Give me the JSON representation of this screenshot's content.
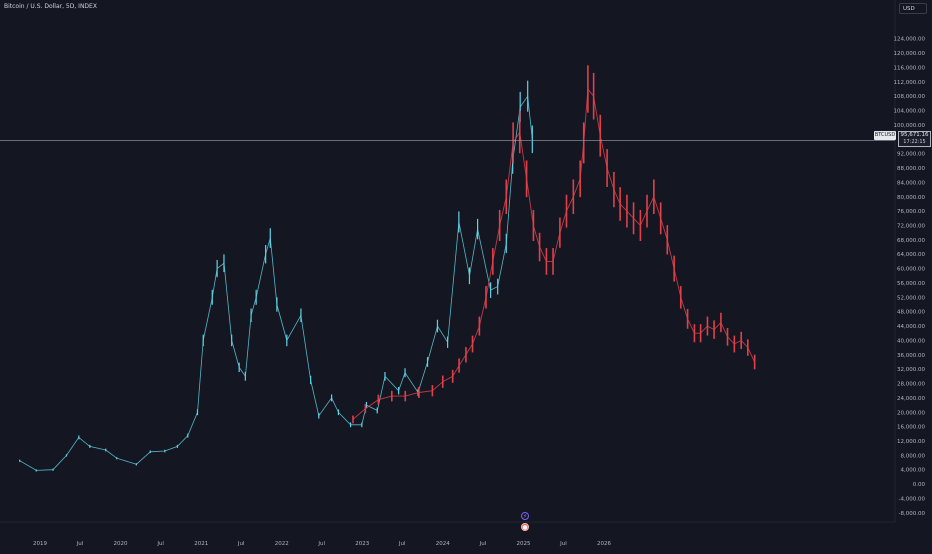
{
  "header": {
    "symbol_title": "Bitcoin / U.S. Dollar, 5D, INDEX",
    "currency": "USD"
  },
  "last_price": {
    "symbol": "BTCUSD",
    "price": "95,671.16",
    "countdown": "17:22:15",
    "value": 95671.16
  },
  "colors": {
    "background": "#141722",
    "history_bars": "#5fd3e6",
    "projection_bars": "#e0404a",
    "price_line": "#9aa0ab",
    "axis_text": "#b2b5be"
  },
  "chart_data": {
    "type": "bar",
    "title": "Bitcoin / U.S. Dollar, 5D, INDEX",
    "xlabel": "",
    "ylabel": "",
    "ylim": [
      -10000,
      132000
    ],
    "grid": false,
    "y_ticks": [
      "124,000.00",
      "120,000.00",
      "116,000.00",
      "112,000.00",
      "108,000.00",
      "104,000.00",
      "100,000.00",
      "92,000.00",
      "88,000.00",
      "84,000.00",
      "80,000.00",
      "76,000.00",
      "72,000.00",
      "68,000.00",
      "64,000.00",
      "60,000.00",
      "56,000.00",
      "52,000.00",
      "48,000.00",
      "44,000.00",
      "40,000.00",
      "36,000.00",
      "32,000.00",
      "28,000.00",
      "24,000.00",
      "20,000.00",
      "16,000.00",
      "12,000.00",
      "8,000.00",
      "4,000.00",
      "0.00",
      "-4,000.00",
      "-8,000.00"
    ],
    "x_ticks": [
      "2019",
      "Jul",
      "2020",
      "Jul",
      "2021",
      "Jul",
      "2022",
      "Jul",
      "2023",
      "Jul",
      "2024",
      "Jul",
      "2025",
      "Jul",
      "2026"
    ],
    "x_tick_dates": [
      "2019-01-01",
      "2019-07-01",
      "2020-01-01",
      "2020-07-01",
      "2021-01-01",
      "2021-07-01",
      "2022-01-01",
      "2022-07-01",
      "2023-01-01",
      "2023-07-01",
      "2024-01-01",
      "2024-07-01",
      "2025-01-01",
      "2025-07-01",
      "2026-01-01"
    ],
    "series": [
      {
        "color": "#5fd3e6",
        "x": [
          "2018-10-01",
          "2018-12-15",
          "2019-03-01",
          "2019-05-01",
          "2019-06-26",
          "2019-08-15",
          "2019-10-26",
          "2019-12-15",
          "2020-03-13",
          "2020-05-15",
          "2020-07-20",
          "2020-09-15",
          "2020-11-01",
          "2020-12-15",
          "2021-01-10",
          "2021-02-20",
          "2021-03-14",
          "2021-04-14",
          "2021-05-19",
          "2021-06-22",
          "2021-07-20",
          "2021-08-15",
          "2021-09-07",
          "2021-10-20",
          "2021-11-10",
          "2021-12-10",
          "2022-01-24",
          "2022-03-29",
          "2022-05-12",
          "2022-06-18",
          "2022-08-15",
          "2022-09-15",
          "2022-11-09",
          "2022-12-30",
          "2023-01-20",
          "2023-03-10",
          "2023-04-14",
          "2023-06-15",
          "2023-07-14",
          "2023-09-11",
          "2023-10-24",
          "2023-12-08",
          "2024-01-23",
          "2024-03-14",
          "2024-05-01",
          "2024-06-07",
          "2024-08-05",
          "2024-09-06",
          "2024-10-15",
          "2024-11-13",
          "2024-12-17",
          "2025-01-20",
          "2025-02-10"
        ],
        "y": [
          6500,
          3800,
          4000,
          8000,
          13000,
          10500,
          9500,
          7200,
          5500,
          9000,
          9200,
          10500,
          13500,
          20000,
          40000,
          52000,
          60000,
          61500,
          40000,
          32500,
          30000,
          47000,
          52000,
          64000,
          68500,
          50000,
          40000,
          47000,
          29000,
          19000,
          24000,
          20000,
          16500,
          16500,
          22000,
          20500,
          30000,
          26000,
          31000,
          25500,
          34000,
          44000,
          39500,
          73000,
          58000,
          71000,
          54000,
          55000,
          67000,
          90000,
          105000,
          108000,
          96000
        ]
      },
      {
        "color": "#e0404a",
        "x": [
          "2022-11-20",
          "2023-01-15",
          "2023-03-15",
          "2023-05-15",
          "2023-07-15",
          "2023-09-15",
          "2023-11-15",
          "2024-01-01",
          "2024-02-15",
          "2024-03-15",
          "2024-04-15",
          "2024-05-15",
          "2024-06-15",
          "2024-07-15",
          "2024-08-15",
          "2024-09-15",
          "2024-10-15",
          "2024-11-15",
          "2024-12-15",
          "2025-01-15",
          "2025-02-15",
          "2025-03-15",
          "2025-04-15",
          "2025-05-15",
          "2025-06-15",
          "2025-07-15",
          "2025-08-15",
          "2025-09-15",
          "2025-10-01",
          "2025-10-20",
          "2025-11-15",
          "2025-12-15",
          "2026-01-15",
          "2026-02-15",
          "2026-03-15",
          "2026-04-15",
          "2026-05-15",
          "2026-06-15",
          "2026-07-15",
          "2026-08-15",
          "2026-09-15",
          "2026-10-15",
          "2026-11-15",
          "2026-12-15",
          "2027-01-15",
          "2027-02-15",
          "2027-03-15",
          "2027-04-15",
          "2027-05-15",
          "2027-06-15",
          "2027-07-15",
          "2027-08-15",
          "2027-09-15",
          "2027-10-15",
          "2027-11-15"
        ],
        "y": [
          18000,
          21000,
          23500,
          24500,
          24500,
          25500,
          26000,
          28500,
          30000,
          33000,
          36000,
          39000,
          44000,
          52000,
          62000,
          72000,
          80000,
          95000,
          98000,
          85000,
          72000,
          66000,
          62000,
          62000,
          70000,
          76000,
          80000,
          85000,
          95000,
          110000,
          108000,
          97000,
          88000,
          82000,
          78000,
          76000,
          74000,
          72000,
          76000,
          80000,
          74000,
          68000,
          60000,
          52000,
          46000,
          42000,
          42000,
          44000,
          43000,
          45000,
          41000,
          39000,
          40000,
          38000,
          34000
        ]
      }
    ]
  }
}
